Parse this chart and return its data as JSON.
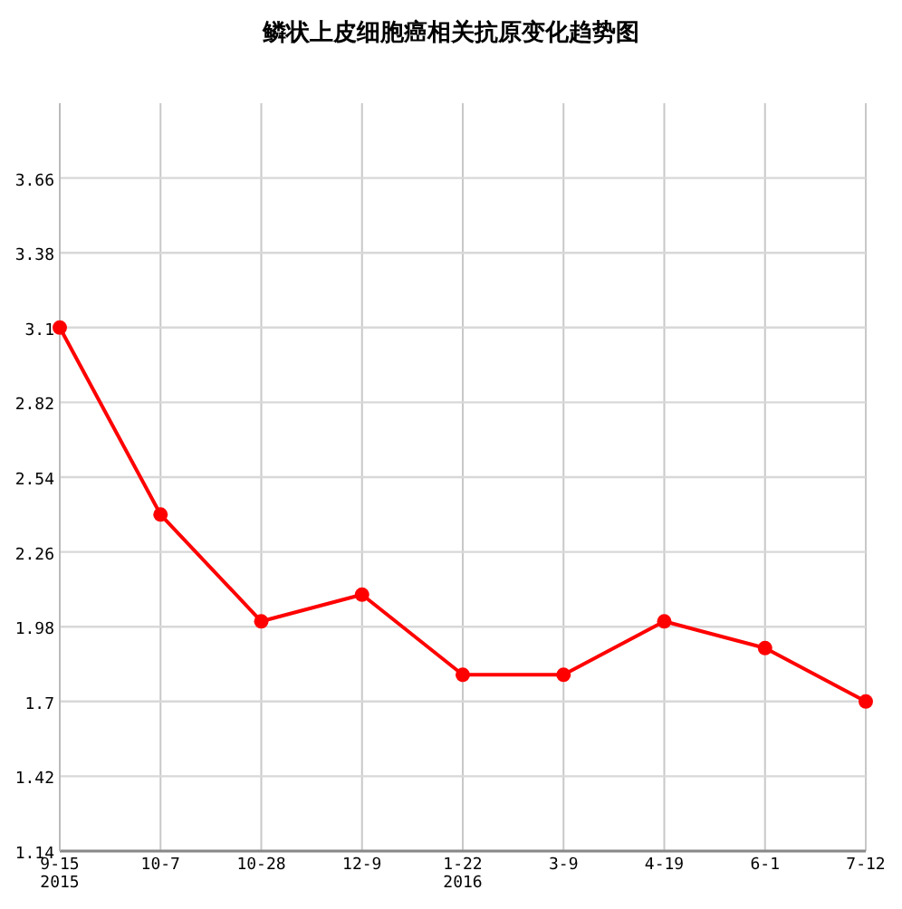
{
  "chart_data": {
    "type": "line",
    "title": "鳞状上皮细胞癌相关抗原变化趋势图",
    "categories": [
      "9-15\n2015",
      "10-7",
      "10-28",
      "12-9",
      "1-22\n2016",
      "3-9",
      "4-19",
      "6-1",
      "7-12"
    ],
    "series": [
      {
        "color": "#ff0000",
        "values": [
          3.1,
          2.4,
          2.0,
          2.1,
          1.8,
          1.8,
          2.0,
          1.9,
          1.7
        ]
      }
    ],
    "ylim": [
      1.14,
      3.94
    ],
    "yticks": [
      1.14,
      1.42,
      1.7,
      1.98,
      2.26,
      2.54,
      2.82,
      3.1,
      3.38,
      3.66
    ],
    "grid": true,
    "marker": "circle",
    "line_style": "solid"
  }
}
